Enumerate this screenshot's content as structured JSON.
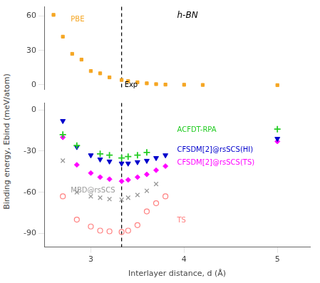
{
  "chart_data": [
    {
      "type": "scatter",
      "series": [
        {
          "name": "PBE",
          "color": "#F5A623",
          "marker": "square",
          "x": [
            2.6,
            2.7,
            2.8,
            2.9,
            3.0,
            3.1,
            3.2,
            3.33,
            3.4,
            3.5,
            3.6,
            3.7,
            3.8,
            4.0,
            4.2,
            5.0
          ],
          "values": [
            61,
            42,
            27,
            22,
            12,
            10,
            6.5,
            4.2,
            3.2,
            2.2,
            1.3,
            0.6,
            0.2,
            0.05,
            -0.1,
            -0.3
          ]
        }
      ],
      "xlim": [
        2.5,
        5.35
      ],
      "ylim": [
        -4,
        68
      ],
      "yticks": [
        0,
        30,
        60
      ],
      "tick_labels": "y",
      "grid": false,
      "annotations": [
        {
          "text": "Exp",
          "x": 3.33,
          "line_style": "dashed"
        },
        {
          "text": "h-BN"
        }
      ]
    },
    {
      "type": "scatter",
      "x_label": "Interlayer distance, d (Å)",
      "y_label": "Binding energy, Ebind (meV/atom)",
      "series": [
        {
          "name": "MBD@rsSCS",
          "color": "#999999",
          "marker": "x",
          "x": [
            2.7,
            2.85,
            3.0,
            3.1,
            3.2,
            3.33,
            3.4,
            3.5,
            3.6,
            3.7
          ],
          "values": [
            -37,
            -60,
            -63,
            -64,
            -65,
            -65.5,
            -64,
            -62,
            -59,
            -54
          ]
        },
        {
          "name": "TS",
          "color": "#FF8080",
          "marker": "open_circle",
          "x": [
            2.7,
            2.85,
            3.0,
            3.1,
            3.2,
            3.33,
            3.4,
            3.5,
            3.6,
            3.7,
            3.8
          ],
          "values": [
            -63,
            -80,
            -85,
            -88,
            -88.5,
            -89,
            -88,
            -84,
            -74,
            -68,
            -63
          ]
        },
        {
          "name": "ACFDT-RPA",
          "color": "#22CC22",
          "marker": "plus",
          "x": [
            2.7,
            2.85,
            3.1,
            3.2,
            3.33,
            3.4,
            3.5,
            3.6,
            5.0
          ],
          "values": [
            -18,
            -26,
            -32,
            -33,
            -35,
            -34,
            -33,
            -31,
            -14
          ]
        },
        {
          "name": "CFSDM[2]@rsSCS(HI)",
          "color": "#0000CC",
          "marker": "triangle_down",
          "x": [
            2.7,
            2.85,
            3.0,
            3.1,
            3.2,
            3.33,
            3.4,
            3.5,
            3.6,
            3.7,
            3.8,
            5.0
          ],
          "values": [
            -8,
            -27,
            -33,
            -36,
            -37.5,
            -39,
            -39,
            -38,
            -37,
            -35,
            -33,
            -21
          ]
        },
        {
          "name": "CFSDM[2]@rsSCS(TS)",
          "color": "#FF00FF",
          "marker": "diamond",
          "x": [
            2.7,
            2.85,
            3.0,
            3.1,
            3.2,
            3.33,
            3.4,
            3.5,
            3.6,
            3.7,
            3.8,
            5.0
          ],
          "values": [
            -20,
            -40,
            -46,
            -49,
            -50.5,
            -52,
            -51,
            -49,
            -47,
            -44,
            -41,
            -23
          ]
        }
      ],
      "xlim": [
        2.5,
        5.35
      ],
      "xticks": [
        3,
        4,
        5
      ],
      "ylim": [
        -100,
        5
      ],
      "yticks": [
        -90,
        -60,
        -30,
        0
      ],
      "grid": false,
      "annotations": [
        {
          "x": 3.33,
          "line_style": "dashed"
        }
      ]
    }
  ]
}
